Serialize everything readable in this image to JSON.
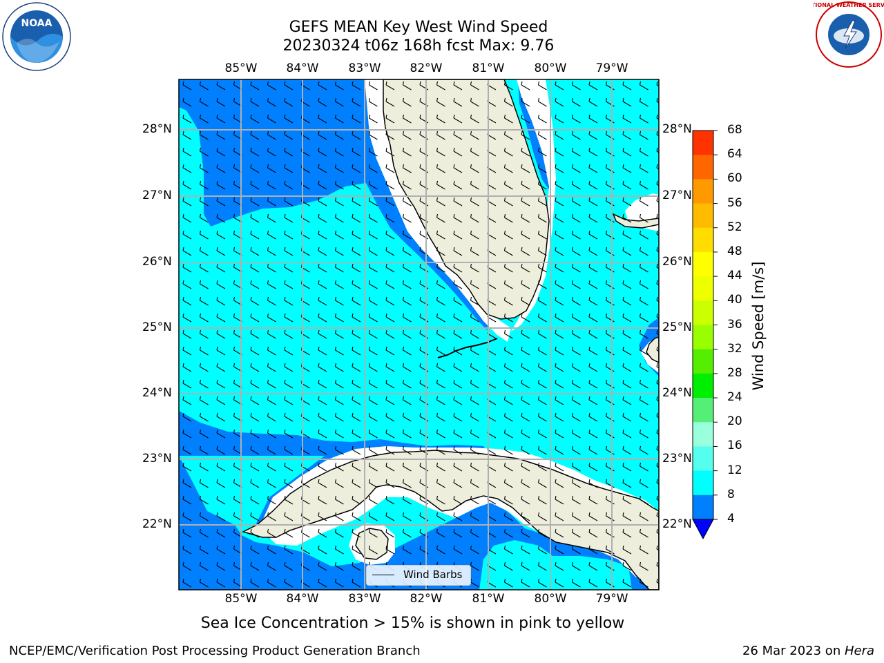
{
  "header": {
    "title_line1": "GEFS MEAN Key West Wind Speed",
    "title_line2": "20230324 t06z 168h fcst   Max: 9.76"
  },
  "logos": {
    "left": {
      "icon": "noaa-logo",
      "text": "NOAA"
    },
    "right": {
      "icon": "nws-logo",
      "text": "NATIONAL WEATHER SERVICE"
    }
  },
  "map": {
    "lon_labels": [
      "85°W",
      "84°W",
      "83°W",
      "82°W",
      "81°W",
      "80°W",
      "79°W"
    ],
    "lat_labels": [
      "28°N",
      "27°N",
      "26°N",
      "25°N",
      "24°N",
      "23°N",
      "22°N"
    ],
    "legend_label": "Wind Barbs",
    "colors": {
      "ocean_dark": "#0080ff",
      "ocean_light": "#00ffff",
      "land": "#eeeedd",
      "grid": "#b0b0b0"
    }
  },
  "colorbar": {
    "title": "Wind Speed [m/s]",
    "ticks": [
      "68",
      "64",
      "60",
      "56",
      "52",
      "48",
      "44",
      "40",
      "36",
      "32",
      "28",
      "24",
      "20",
      "16",
      "12",
      "8",
      "4"
    ],
    "colors": [
      "#ff0000",
      "#ff3300",
      "#ff6600",
      "#ff9900",
      "#ffbb00",
      "#ffdd00",
      "#ffff00",
      "#eeff00",
      "#ccff00",
      "#99ff00",
      "#55ee00",
      "#00ee00",
      "#55ee77",
      "#99ffdd",
      "#55ffee",
      "#00ffff",
      "#0080ff"
    ],
    "under_color": "#0000ff"
  },
  "caption": "Sea Ice Concentration > 15% is shown in pink to yellow",
  "footer": {
    "left": "NCEP/EMC/Verification Post Processing Product Generation Branch",
    "right_date": "26 Mar 2023 on ",
    "right_host": "Hera"
  }
}
